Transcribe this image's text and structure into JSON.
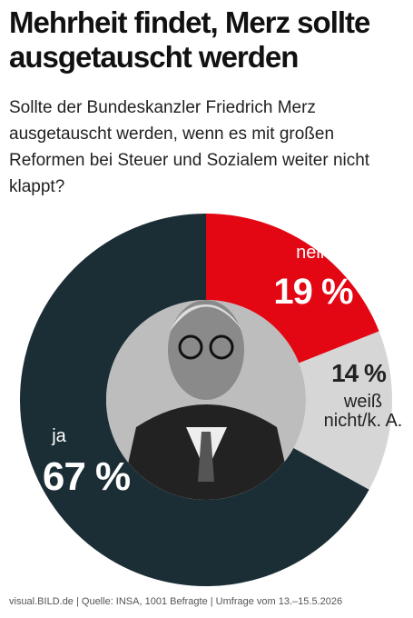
{
  "chart_data": {
    "type": "donut",
    "title": "Mehrheit findet, Merz sollte ausgetauscht werden",
    "subtitle": "Sollte der Bundeskanzler Friedrich Merz ausgetauscht werden, wenn es mit großen Reformen bei Steuer und Sozialem weiter nicht klappt?",
    "categories": [
      "nein",
      "weiß nicht/k. A.",
      "ja"
    ],
    "values": [
      19,
      14,
      67
    ],
    "value_labels": [
      "19 %",
      "14 %",
      "67 %"
    ],
    "colors": [
      "#e30613",
      "#d6d6d6",
      "#1b2d35"
    ],
    "source": "visual.BILD.de | Quelle: INSA, 1001 Befragte | Umfrage vom 13.–15.5.2026"
  }
}
